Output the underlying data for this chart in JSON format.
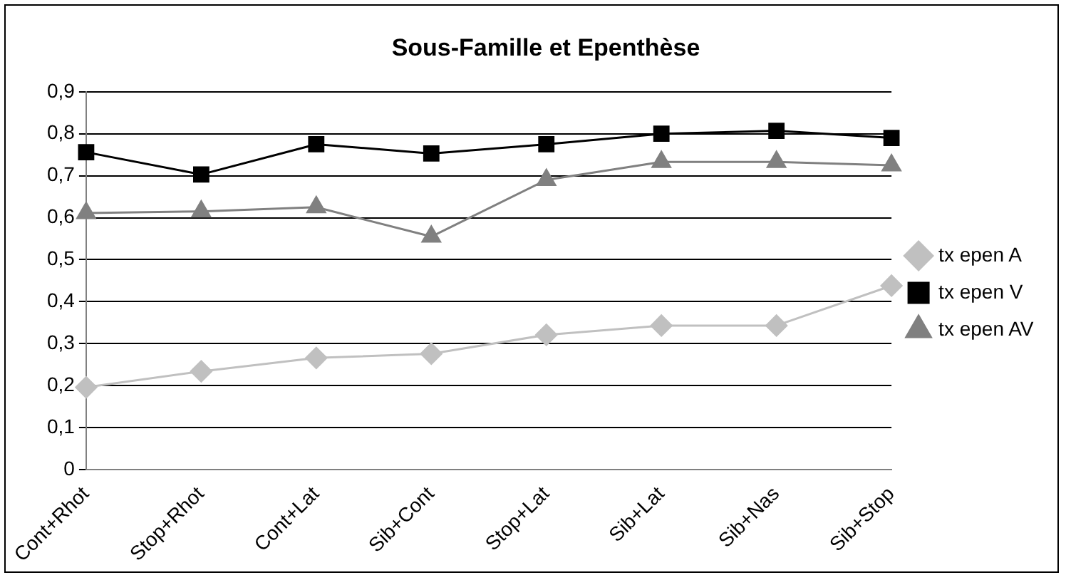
{
  "chart_data": {
    "type": "line",
    "title": "Sous-Famille et Epenthèse",
    "categories": [
      "Cont+Rhot",
      "Stop+Rhot",
      "Cont+Lat",
      "Sib+Cont",
      "Stop+Lat",
      "Sib+Lat",
      "Sib+Nas",
      "Sib+Stop"
    ],
    "series": [
      {
        "name": "tx epen A",
        "color": "#c0c0c0",
        "marker": "diamond",
        "values": [
          0.196,
          0.234,
          0.266,
          0.276,
          0.321,
          0.343,
          0.343,
          0.438
        ]
      },
      {
        "name": "tx epen V",
        "color": "#000000",
        "marker": "square",
        "values": [
          0.756,
          0.703,
          0.775,
          0.753,
          0.775,
          0.8,
          0.807,
          0.79
        ]
      },
      {
        "name": "tx epen AV",
        "color": "#808080",
        "marker": "triangle",
        "values": [
          0.611,
          0.615,
          0.625,
          0.555,
          0.69,
          0.733,
          0.733,
          0.725
        ]
      }
    ],
    "ylim": [
      0,
      0.9
    ],
    "yticks": [
      {
        "value": 0,
        "label": "0"
      },
      {
        "value": 0.1,
        "label": "0,1"
      },
      {
        "value": 0.2,
        "label": "0,2"
      },
      {
        "value": 0.3,
        "label": "0,3"
      },
      {
        "value": 0.4,
        "label": "0,4"
      },
      {
        "value": 0.5,
        "label": "0,5"
      },
      {
        "value": 0.6,
        "label": "0,6"
      },
      {
        "value": 0.7,
        "label": "0,7"
      },
      {
        "value": 0.8,
        "label": "0,8"
      },
      {
        "value": 0.9,
        "label": "0,9"
      }
    ],
    "grid": "y",
    "legend": "right"
  }
}
